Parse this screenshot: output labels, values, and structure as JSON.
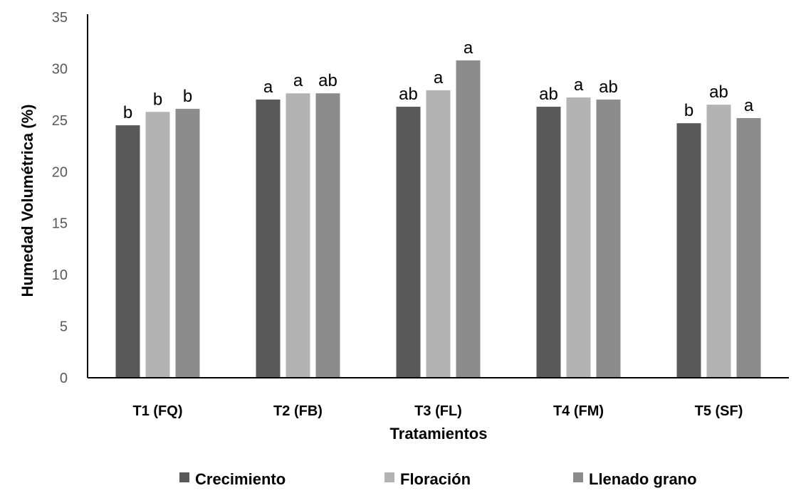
{
  "chart_data": {
    "type": "bar",
    "title": "",
    "xlabel": "Tratamientos",
    "ylabel": "Humedad Volumétrica (%)",
    "ylim": [
      0,
      35
    ],
    "yticks": [
      0,
      5,
      10,
      15,
      20,
      25,
      30,
      35
    ],
    "grid": false,
    "legend_position": "bottom",
    "categories": [
      "T1 (FQ)",
      "T2 (FB)",
      "T3 (FL)",
      "T4 (FM)",
      "T5 (SF)"
    ],
    "series": [
      {
        "name": "Crecimiento",
        "color": "#595959",
        "values": [
          24.5,
          27.0,
          26.3,
          26.3,
          24.7
        ],
        "labels": [
          "b",
          "a",
          "ab",
          "ab",
          "b"
        ]
      },
      {
        "name": "Floración",
        "color": "#b3b3b3",
        "values": [
          25.8,
          27.6,
          27.9,
          27.2,
          26.5
        ],
        "labels": [
          "b",
          "a",
          "a",
          "a",
          "ab"
        ]
      },
      {
        "name": "Llenado grano",
        "color": "#8c8c8c",
        "values": [
          26.1,
          27.6,
          30.8,
          27.0,
          25.2
        ],
        "labels": [
          "b",
          "ab",
          "a",
          "ab",
          "a"
        ]
      }
    ]
  }
}
